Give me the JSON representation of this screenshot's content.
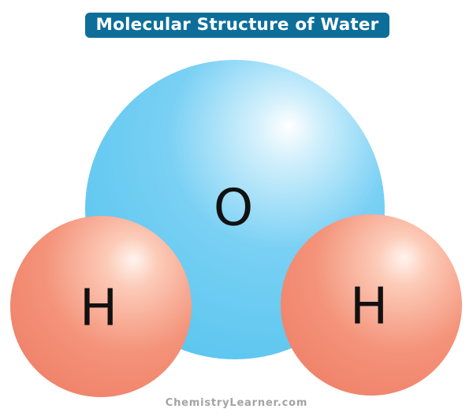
{
  "title": "Molecular Structure of Water",
  "atoms": {
    "oxygen": {
      "symbol": "O",
      "color": "#6ccdf2"
    },
    "hydrogen_left": {
      "symbol": "H",
      "color": "#f4937a"
    },
    "hydrogen_right": {
      "symbol": "H",
      "color": "#f4937a"
    }
  },
  "watermark": "ChemistryLearner.com",
  "colors": {
    "title_background": "#0d6e9a",
    "title_text": "#ffffff",
    "watermark_text": "#a3a3a3"
  }
}
